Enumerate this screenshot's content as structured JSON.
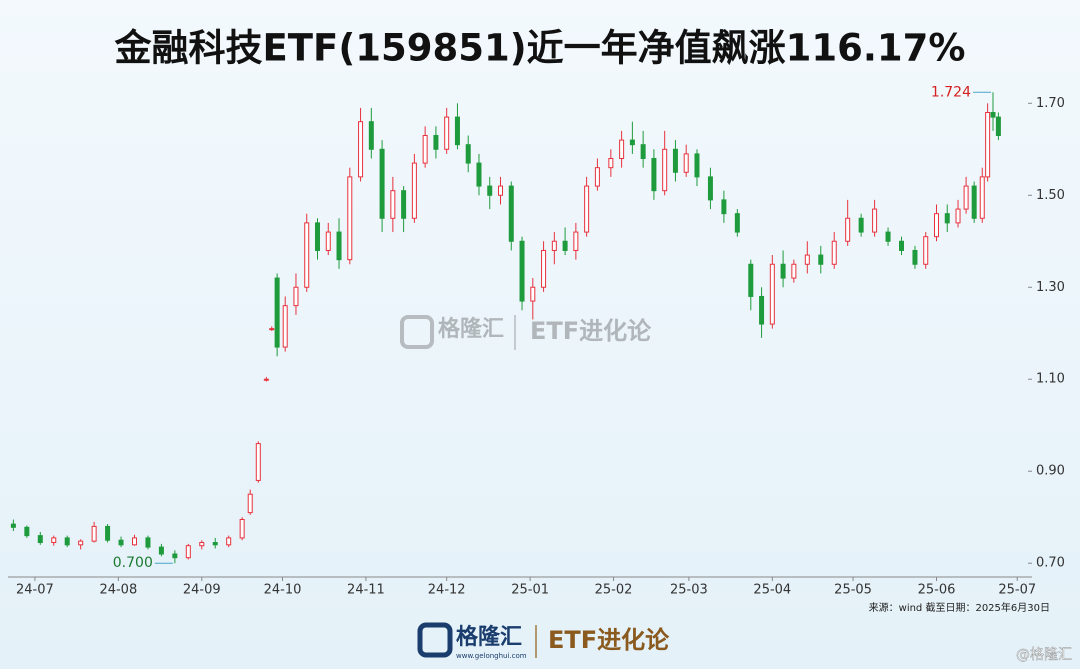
{
  "chart_data": {
    "type": "candlestick",
    "title": "金融科技ETF(159851)近一年净值飙涨116.17%",
    "x": [
      -8,
      -3,
      2,
      7,
      12,
      17,
      22,
      27,
      32,
      37,
      42,
      47,
      52,
      57,
      62,
      67,
      72,
      77,
      80,
      83,
      86,
      88,
      90,
      93,
      97,
      101,
      105,
      109,
      113,
      117,
      121,
      125,
      129,
      133,
      137,
      141,
      145,
      149,
      153,
      157,
      161,
      165,
      169,
      173,
      177,
      181,
      185,
      189,
      193,
      197,
      201,
      205,
      209,
      214,
      218,
      222,
      226,
      230,
      234,
      238,
      242,
      246,
      251,
      256,
      261,
      266,
      270,
      274,
      278,
      282,
      287,
      292,
      297,
      302,
      307,
      312,
      317,
      322,
      327,
      331,
      335,
      339,
      343,
      346,
      349,
      352,
      354,
      356,
      358
    ],
    "open": [
      0.785,
      0.778,
      0.76,
      0.745,
      0.755,
      0.74,
      0.748,
      0.78,
      0.75,
      0.74,
      0.755,
      0.735,
      0.72,
      0.712,
      0.738,
      0.745,
      0.74,
      0.755,
      0.81,
      0.88,
      1.1,
      1.21,
      1.32,
      1.17,
      1.26,
      1.3,
      1.44,
      1.38,
      1.42,
      1.36,
      1.54,
      1.66,
      1.6,
      1.45,
      1.51,
      1.45,
      1.57,
      1.63,
      1.6,
      1.67,
      1.61,
      1.57,
      1.52,
      1.5,
      1.52,
      1.4,
      1.27,
      1.3,
      1.38,
      1.4,
      1.38,
      1.42,
      1.52,
      1.56,
      1.58,
      1.62,
      1.61,
      1.58,
      1.51,
      1.6,
      1.55,
      1.59,
      1.54,
      1.49,
      1.46,
      1.35,
      1.28,
      1.22,
      1.35,
      1.32,
      1.35,
      1.37,
      1.35,
      1.4,
      1.45,
      1.42,
      1.42,
      1.4,
      1.38,
      1.35,
      1.41,
      1.46,
      1.44,
      1.47,
      1.52,
      1.45,
      1.54,
      1.68,
      1.67
    ],
    "high": [
      0.795,
      0.782,
      0.768,
      0.76,
      0.76,
      0.752,
      0.79,
      0.785,
      0.758,
      0.762,
      0.76,
      0.742,
      0.728,
      0.742,
      0.75,
      0.755,
      0.76,
      0.8,
      0.86,
      0.965,
      1.105,
      1.215,
      1.33,
      1.28,
      1.33,
      1.46,
      1.45,
      1.44,
      1.45,
      1.56,
      1.69,
      1.69,
      1.62,
      1.54,
      1.52,
      1.59,
      1.65,
      1.65,
      1.69,
      1.7,
      1.63,
      1.59,
      1.54,
      1.54,
      1.53,
      1.41,
      1.32,
      1.4,
      1.42,
      1.43,
      1.44,
      1.54,
      1.58,
      1.6,
      1.64,
      1.66,
      1.64,
      1.6,
      1.64,
      1.62,
      1.61,
      1.6,
      1.56,
      1.51,
      1.47,
      1.36,
      1.3,
      1.37,
      1.38,
      1.36,
      1.4,
      1.39,
      1.42,
      1.49,
      1.46,
      1.49,
      1.43,
      1.41,
      1.39,
      1.42,
      1.48,
      1.48,
      1.49,
      1.54,
      1.53,
      1.56,
      1.7,
      1.724,
      1.68
    ],
    "low": [
      0.77,
      0.755,
      0.74,
      0.738,
      0.735,
      0.73,
      0.745,
      0.745,
      0.735,
      0.738,
      0.73,
      0.715,
      0.7,
      0.708,
      0.73,
      0.732,
      0.735,
      0.75,
      0.805,
      0.875,
      1.095,
      1.205,
      1.15,
      1.16,
      1.24,
      1.29,
      1.36,
      1.37,
      1.34,
      1.35,
      1.53,
      1.58,
      1.42,
      1.42,
      1.42,
      1.44,
      1.56,
      1.58,
      1.59,
      1.6,
      1.55,
      1.5,
      1.47,
      1.48,
      1.38,
      1.25,
      1.23,
      1.29,
      1.35,
      1.37,
      1.36,
      1.41,
      1.51,
      1.54,
      1.56,
      1.59,
      1.56,
      1.49,
      1.5,
      1.53,
      1.54,
      1.52,
      1.47,
      1.44,
      1.41,
      1.25,
      1.19,
      1.21,
      1.3,
      1.31,
      1.33,
      1.33,
      1.34,
      1.39,
      1.41,
      1.41,
      1.39,
      1.37,
      1.34,
      1.34,
      1.4,
      1.42,
      1.43,
      1.46,
      1.44,
      1.44,
      1.53,
      1.64,
      1.62
    ],
    "close": [
      0.778,
      0.76,
      0.745,
      0.755,
      0.74,
      0.748,
      0.78,
      0.75,
      0.74,
      0.755,
      0.735,
      0.72,
      0.712,
      0.738,
      0.745,
      0.74,
      0.755,
      0.795,
      0.85,
      0.96,
      1.1,
      1.21,
      1.17,
      1.26,
      1.3,
      1.44,
      1.38,
      1.42,
      1.36,
      1.54,
      1.66,
      1.6,
      1.45,
      1.51,
      1.45,
      1.57,
      1.63,
      1.6,
      1.67,
      1.61,
      1.57,
      1.52,
      1.5,
      1.52,
      1.4,
      1.27,
      1.3,
      1.38,
      1.4,
      1.38,
      1.42,
      1.52,
      1.56,
      1.58,
      1.62,
      1.61,
      1.58,
      1.51,
      1.6,
      1.55,
      1.59,
      1.54,
      1.49,
      1.46,
      1.42,
      1.28,
      1.22,
      1.35,
      1.32,
      1.35,
      1.37,
      1.35,
      1.4,
      1.45,
      1.42,
      1.47,
      1.4,
      1.38,
      1.35,
      1.41,
      1.46,
      1.44,
      1.47,
      1.52,
      1.45,
      1.54,
      1.68,
      1.67,
      1.63
    ],
    "up_color": "#e8313d",
    "down_color": "#1e9b3c",
    "xlim": [
      -10,
      369
    ],
    "xticks": [
      {
        "value": 0,
        "label": "24-07"
      },
      {
        "value": 31,
        "label": "24-08"
      },
      {
        "value": 62,
        "label": "24-09"
      },
      {
        "value": 92,
        "label": "24-10"
      },
      {
        "value": 123,
        "label": "24-11"
      },
      {
        "value": 153,
        "label": "24-12"
      },
      {
        "value": 184,
        "label": "25-01"
      },
      {
        "value": 215,
        "label": "25-02"
      },
      {
        "value": 243,
        "label": "25-03"
      },
      {
        "value": 274,
        "label": "25-04"
      },
      {
        "value": 304,
        "label": "25-05"
      },
      {
        "value": 335,
        "label": "25-06"
      },
      {
        "value": 365,
        "label": "25-07"
      }
    ],
    "ylim": [
      0.67,
      1.755
    ],
    "yticks": [
      {
        "value": 0.7,
        "label": "0.70"
      },
      {
        "value": 0.9,
        "label": "0.90"
      },
      {
        "value": 1.1,
        "label": "1.10"
      },
      {
        "value": 1.3,
        "label": "1.30"
      },
      {
        "value": 1.5,
        "label": "1.50"
      },
      {
        "value": 1.7,
        "label": "1.70"
      }
    ],
    "annotations": [
      {
        "value": 1.724,
        "label": "1.724",
        "x": 356,
        "color": "#d42020"
      },
      {
        "value": 0.7,
        "label": "0.700",
        "x": 52,
        "color": "#1a7a30"
      }
    ],
    "source": "来源：wind 截至日期：2025年6月30日",
    "brand": "格隆汇",
    "brand_url": "www.gelonghui.com",
    "slogan": "ETF进化论",
    "credit": "@格隆汇"
  }
}
